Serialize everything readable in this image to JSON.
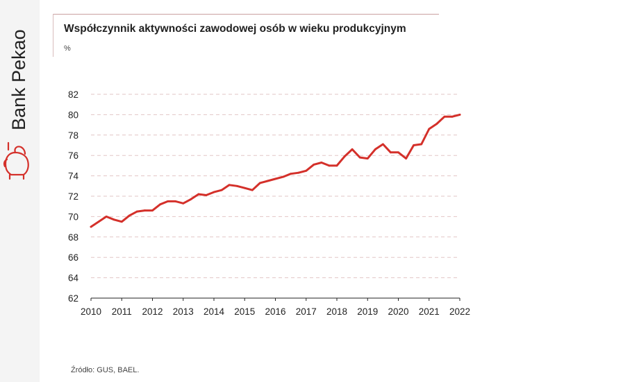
{
  "brand": {
    "name": "Bank Pekao",
    "accent_color": "#d4302a"
  },
  "header": {
    "title": "Współczynnik aktywności zawodowej osób w wieku produkcyjnym",
    "unit": "%"
  },
  "footer": {
    "source": "Źródło: GUS, BAEL."
  },
  "chart_data": {
    "type": "line",
    "title": "Współczynnik aktywności zawodowej osób w wieku produkcyjnym",
    "ylabel": "%",
    "xlabel": "",
    "xlim": [
      2010,
      2022
    ],
    "ylim": [
      62,
      82
    ],
    "yticks": [
      "62",
      "64",
      "66",
      "68",
      "70",
      "72",
      "74",
      "76",
      "78",
      "80",
      "82"
    ],
    "xticks": [
      "2010",
      "2011",
      "2012",
      "2013",
      "2014",
      "2015",
      "2016",
      "2017",
      "2018",
      "2019",
      "2020",
      "2021",
      "2022"
    ],
    "grid": true,
    "series": [
      {
        "name": "Współczynnik aktywności zawodowej",
        "color": "#d4302a",
        "x": [
          2010.0,
          2010.25,
          2010.5,
          2010.75,
          2011.0,
          2011.25,
          2011.5,
          2011.75,
          2012.0,
          2012.25,
          2012.5,
          2012.75,
          2013.0,
          2013.25,
          2013.5,
          2013.75,
          2014.0,
          2014.25,
          2014.5,
          2014.75,
          2015.0,
          2015.25,
          2015.5,
          2015.75,
          2016.0,
          2016.25,
          2016.5,
          2016.75,
          2017.0,
          2017.25,
          2017.5,
          2017.75,
          2018.0,
          2018.25,
          2018.5,
          2018.75,
          2019.0,
          2019.25,
          2019.5,
          2019.75,
          2020.0,
          2020.25,
          2020.5,
          2020.75,
          2021.0,
          2021.25,
          2021.5,
          2021.75,
          2022.0
        ],
        "values": [
          69.0,
          69.5,
          70.0,
          69.7,
          69.5,
          70.1,
          70.5,
          70.6,
          70.6,
          71.2,
          71.5,
          71.5,
          71.3,
          71.7,
          72.2,
          72.1,
          72.4,
          72.6,
          73.1,
          73.0,
          72.8,
          72.6,
          73.3,
          73.5,
          73.7,
          73.9,
          74.2,
          74.3,
          74.5,
          75.1,
          75.3,
          75.0,
          75.0,
          75.9,
          76.6,
          75.8,
          75.7,
          76.6,
          77.1,
          76.3,
          76.3,
          75.7,
          77.0,
          77.1,
          78.6,
          79.1,
          79.8,
          79.8,
          80.0
        ]
      }
    ]
  }
}
